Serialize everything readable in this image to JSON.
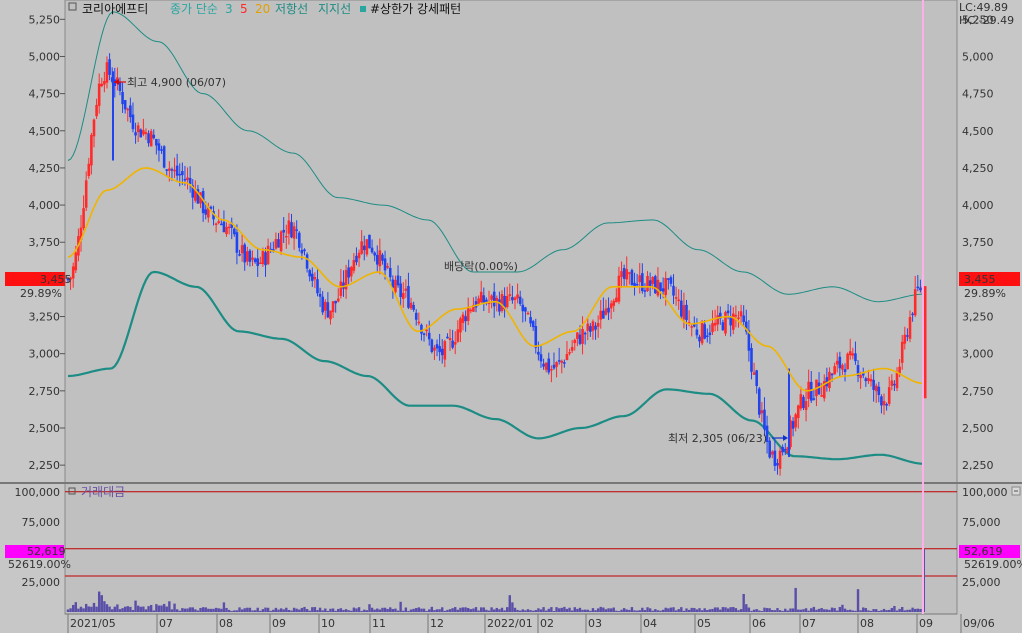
{
  "legend": {
    "stock_name": "코리아에프티",
    "ma_prefix": "종가 단순",
    "ma_3": "3",
    "ma_5": "5",
    "ma_20": "20",
    "resistance": "저항선",
    "support": "지지선",
    "pattern": "#상한가 강세패턴"
  },
  "indicators": {
    "lc": "LC:49.89",
    "hc": "HC:-29.49"
  },
  "price_badge": {
    "value": "3,455",
    "pct": "29.89%"
  },
  "annotations": {
    "high": "최고 4,900 (06/07)",
    "low": "최저 2,305 (06/23)",
    "dividend": "배당락(0.00%)"
  },
  "volume_panel": {
    "title": "거래대금",
    "badge_value": "52,619",
    "badge_pct": "52619.00%",
    "ticks": [
      "100,000",
      "75,000",
      "50,000",
      "25,000"
    ],
    "tick_values": [
      100000,
      75000,
      50000,
      25000
    ]
  },
  "price_ticks": [
    "5,250",
    "5,000",
    "4,750",
    "4,500",
    "4,250",
    "4,000",
    "3,750",
    "3,500",
    "3,250",
    "3,000",
    "2,750",
    "2,500",
    "2,250"
  ],
  "price_tick_values": [
    5250,
    5000,
    4750,
    4500,
    4250,
    4000,
    3750,
    3500,
    3250,
    3000,
    2750,
    2500,
    2250
  ],
  "x_labels": [
    "2021/05",
    "07",
    "08",
    "09",
    "10",
    "11",
    "12",
    "2022/01",
    "02",
    "03",
    "04",
    "05",
    "06",
    "07",
    "08",
    "09",
    "09/06"
  ],
  "colors": {
    "up": "#ff2a2a",
    "down": "#2244ee",
    "ma20": "#f0b400",
    "band": "#1c8c84",
    "badge_red": "#ff1010",
    "badge_magenta": "#ff00ff",
    "volume_bar": "#5a4fa8",
    "hline": "#c00000"
  },
  "chart_data": {
    "type": "candlestick",
    "y_range": [
      2150,
      5380
    ],
    "volume_range": [
      0,
      104000
    ],
    "months": [
      "2021/05",
      "07",
      "08",
      "09",
      "10",
      "11",
      "12",
      "2022/01",
      "02",
      "03",
      "04",
      "05",
      "06",
      "07",
      "08",
      "09"
    ],
    "close_path": [
      {
        "x": "2021-05",
        "y": 3500
      },
      {
        "x": "2021-06-07",
        "y": 4900
      },
      {
        "x": "2021-06",
        "y": 4500
      },
      {
        "x": "2021-07",
        "y": 4200
      },
      {
        "x": "2021-08",
        "y": 3900
      },
      {
        "x": "2021-08-20",
        "y": 3600
      },
      {
        "x": "2021-09",
        "y": 3850
      },
      {
        "x": "2021-10",
        "y": 3300
      },
      {
        "x": "2021-11",
        "y": 3750
      },
      {
        "x": "2021-11-20",
        "y": 3400
      },
      {
        "x": "2021-12",
        "y": 3000
      },
      {
        "x": "2021-12-20",
        "y": 3350
      },
      {
        "x": "2022-01",
        "y": 3350
      },
      {
        "x": "2022-02",
        "y": 2900
      },
      {
        "x": "2022-03",
        "y": 3150
      },
      {
        "x": "2022-04",
        "y": 3500
      },
      {
        "x": "2022-05",
        "y": 3450
      },
      {
        "x": "2022-05-20",
        "y": 3150
      },
      {
        "x": "2022-06",
        "y": 3250
      },
      {
        "x": "2022-06-23",
        "y": 2305
      },
      {
        "x": "2022-07",
        "y": 2750
      },
      {
        "x": "2022-08",
        "y": 2950
      },
      {
        "x": "2022-08-25",
        "y": 2700
      },
      {
        "x": "2022-09-06",
        "y": 3455
      }
    ],
    "ma20": [
      3650,
      4100,
      4250,
      4150,
      3900,
      3700,
      3650,
      3450,
      3550,
      3150,
      3300,
      3350,
      3050,
      3150,
      3450,
      3450,
      3200,
      3250,
      3050,
      2750,
      2850,
      2900,
      2800
    ],
    "upper_band": [
      4300,
      5300,
      5100,
      4750,
      4500,
      4350,
      4050,
      4000,
      3900,
      3550,
      3550,
      3700,
      3880,
      3900,
      3700,
      3550,
      3400,
      3450,
      3350,
      3400
    ],
    "lower_band": [
      2850,
      2900,
      3550,
      3450,
      3150,
      3100,
      2950,
      2850,
      2650,
      2650,
      2560,
      2430,
      2500,
      2580,
      2760,
      2730,
      2550,
      2310,
      2290,
      2320,
      2260
    ],
    "highlights": {
      "high": {
        "date": "06/07",
        "value": 4900
      },
      "low": {
        "date": "06/23",
        "value": 2305
      },
      "last": 3455,
      "last_volume": 52619
    }
  }
}
